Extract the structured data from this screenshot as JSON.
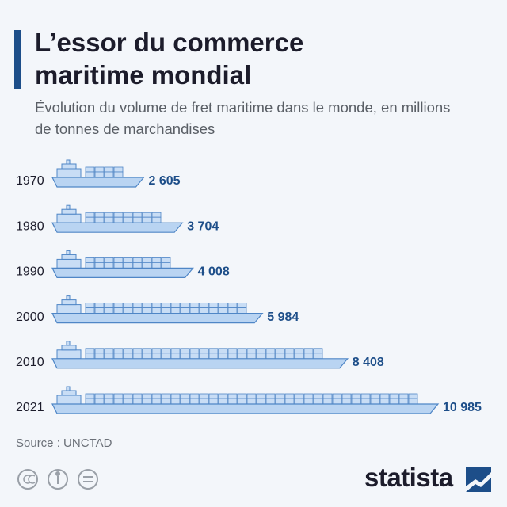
{
  "chart_data": {
    "type": "ship-bar",
    "title": "L’essor du commerce maritime mondial",
    "subtitle": "Évolution du volume de fret maritime dans le monde, en millions de tonnes de marchandises",
    "categories": [
      "1970",
      "1980",
      "1990",
      "2000",
      "2010",
      "2021"
    ],
    "values": [
      2605,
      3704,
      4008,
      5984,
      8408,
      10985
    ],
    "value_labels": [
      "2 605",
      "3 704",
      "4 008",
      "5 984",
      "8 408",
      "10 985"
    ],
    "color": "#b9d4f2",
    "source": "Source : UNCTAD"
  },
  "footer": {
    "logo": "statista"
  }
}
